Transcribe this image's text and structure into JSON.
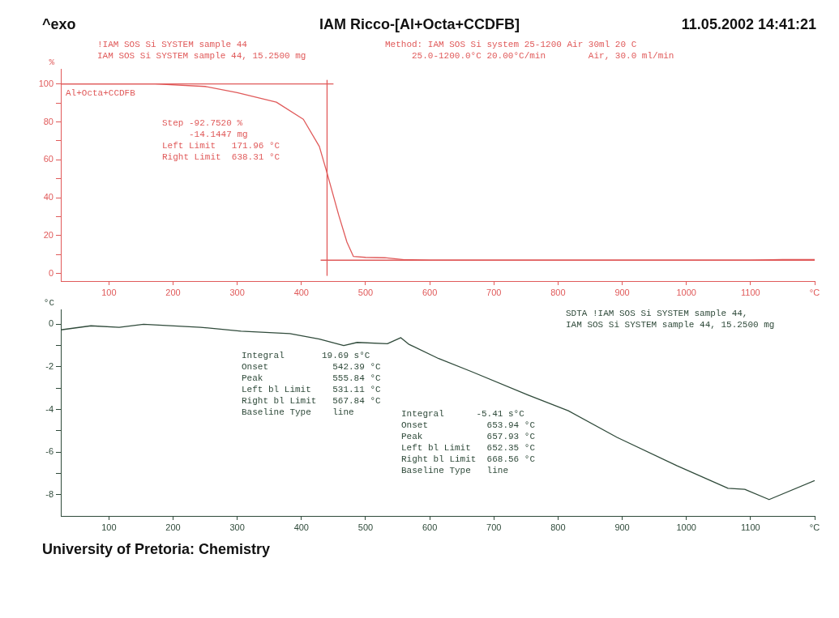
{
  "chart_data": [
    {
      "type": "line",
      "title": "IAM Ricco-[Al+Octa+CCDFB]",
      "ylabel": "%",
      "x": [
        25,
        100,
        172,
        250,
        300,
        361,
        403,
        428,
        440,
        458,
        471,
        481,
        500,
        530,
        560,
        600,
        700,
        800,
        900,
        1000,
        1100,
        1150,
        1200
      ],
      "series": [
        {
          "name": "Al+Octa+CCDFB",
          "color": "#e05a5a",
          "values": [
            100,
            100,
            100,
            98.7,
            95.4,
            90.4,
            81.4,
            67,
            53,
            31,
            16.5,
            9,
            8.5,
            8.3,
            7.3,
            7.1,
            7,
            7,
            7,
            7,
            7.1,
            7.4,
            7.4
          ]
        },
        {
          "color": "#e05a5a",
          "x": [
            25,
            450
          ],
          "values": [
            100,
            100
          ]
        },
        {
          "color": "#e05a5a",
          "x": [
            440,
            440
          ],
          "values": [
            102,
            -1
          ]
        },
        {
          "color": "#e05a5a",
          "x": [
            430,
            1200
          ],
          "values": [
            7,
            7
          ]
        }
      ],
      "xlim": [
        25,
        1200
      ],
      "xticks": [
        100,
        200,
        300,
        400,
        500,
        600,
        700,
        800,
        900,
        1000,
        1100,
        {
          "value": 1200,
          "label": "°C"
        }
      ],
      "ylim": [
        -4,
        108
      ],
      "yticks": [
        0,
        {
          "value": 10,
          "label": null
        },
        20,
        {
          "value": 30,
          "label": null
        },
        40,
        {
          "value": 50,
          "label": null
        },
        60,
        {
          "value": 70,
          "label": null
        },
        80,
        {
          "value": 90,
          "label": null
        },
        100
      ],
      "grid": false,
      "marker": "none",
      "line_style": "solid",
      "annotations": [
        "^exo",
        "11.05.2002 14:41:21",
        "!IAM SOS Si SYSTEM sample 44\nIAM SOS Si SYSTEM sample 44, 15.2500 mg",
        "Method: IAM SOS Si system 25-1200 Air 30ml 20 C\n     25.0-1200.0°C 20.00°C/min        Air, 30.0 ml/min",
        "Step -92.7520 %\n     -14.1447 mg\nLeft Limit   171.96 °C\nRight Limit  638.31 °C"
      ]
    },
    {
      "type": "line",
      "ylabel": "°C",
      "x": [
        25,
        72,
        116,
        154,
        243,
        306,
        382,
        428,
        466,
        487,
        534,
        555,
        567,
        614,
        665,
        753,
        816,
        892,
        985,
        1065,
        1091,
        1129,
        1200
      ],
      "series": [
        {
          "color": "#2f4a3a",
          "values": [
            -0.26,
            -0.07,
            -0.14,
            0,
            -0.14,
            -0.32,
            -0.44,
            -0.69,
            -1.0,
            -0.85,
            -0.91,
            -0.63,
            -0.93,
            -1.61,
            -2.22,
            -3.32,
            -4.06,
            -5.31,
            -6.64,
            -7.7,
            -7.75,
            -8.23,
            -7.34
          ]
        }
      ],
      "xlim": [
        25,
        1200
      ],
      "xticks": [
        100,
        200,
        300,
        400,
        500,
        600,
        700,
        800,
        900,
        1000,
        1100,
        {
          "value": 1200,
          "label": "°C"
        }
      ],
      "ylim": [
        -9,
        0.7
      ],
      "yticks": [
        0,
        {
          "value": -1,
          "label": null
        },
        -2,
        {
          "value": -3,
          "label": null
        },
        -4,
        {
          "value": -5,
          "label": null
        },
        -6,
        {
          "value": -7,
          "label": null
        },
        -8
      ],
      "grid": false,
      "marker": "none",
      "line_style": "solid",
      "annotations": [
        "SDTA !IAM SOS Si SYSTEM sample 44,\nIAM SOS Si SYSTEM sample 44, 15.2500 mg",
        "Integral       19.69 s°C\nOnset            542.39 °C\nPeak             555.84 °C\nLeft bl Limit    531.11 °C\nRight bl Limit   567.84 °C\nBaseline Type    line",
        "Integral      -5.41 s°C\nOnset           653.94 °C\nPeak            657.93 °C\nLeft bl Limit   652.35 °C\nRight bl Limit  668.56 °C\nBaseline Type   line",
        "University of Pretoria: Chemistry"
      ]
    }
  ]
}
